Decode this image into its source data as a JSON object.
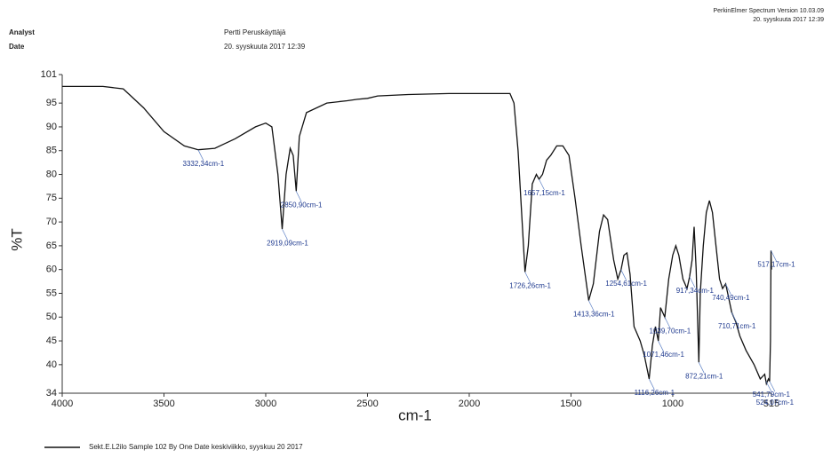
{
  "header": {
    "analyst_label": "Analyst",
    "analyst": "Pertti Peruskäyttäjä",
    "date_label": "Date",
    "date": "20. syyskuuta 2017 12:39",
    "software": "PerkinElmer Spectrum Version 10.03.09",
    "printed": "20. syyskuuta 2017 12:39"
  },
  "chart_data": {
    "type": "line",
    "xlabel": "cm-1",
    "ylabel": "%T",
    "xlim": [
      4000,
      515
    ],
    "ylim": [
      34,
      101
    ],
    "xticks": [
      4000,
      3500,
      3000,
      2500,
      2000,
      1500,
      1000,
      515
    ],
    "yticks": [
      34,
      40,
      45,
      50,
      55,
      60,
      65,
      70,
      75,
      80,
      85,
      90,
      95,
      101
    ],
    "series": [
      {
        "name": "Sekt.E.L2ilo    Sample 102 By One Date keskiviikko, syyskuu 20 2017",
        "color": "#111111",
        "x": [
          4000,
          3800,
          3700,
          3600,
          3500,
          3400,
          3332,
          3250,
          3150,
          3050,
          3000,
          2970,
          2940,
          2919,
          2900,
          2880,
          2865,
          2850,
          2835,
          2800,
          2700,
          2600,
          2550,
          2500,
          2450,
          2300,
          2100,
          1900,
          1800,
          1780,
          1760,
          1740,
          1726,
          1710,
          1690,
          1670,
          1657,
          1640,
          1620,
          1600,
          1570,
          1540,
          1510,
          1480,
          1450,
          1413,
          1390,
          1360,
          1340,
          1320,
          1290,
          1270,
          1254,
          1240,
          1225,
          1210,
          1190,
          1160,
          1140,
          1116,
          1100,
          1085,
          1071,
          1060,
          1039,
          1020,
          1000,
          985,
          970,
          950,
          930,
          917,
          905,
          895,
          885,
          872,
          865,
          850,
          835,
          820,
          805,
          790,
          770,
          755,
          740,
          725,
          710,
          690,
          670,
          640,
          600,
          570,
          548,
          540,
          530,
          524,
          520,
          517,
          515
        ],
        "values": [
          98.5,
          98.5,
          98,
          94,
          89,
          86,
          85.2,
          85.5,
          87.5,
          90,
          90.8,
          90,
          80,
          68.5,
          80,
          85.5,
          84,
          76.5,
          88,
          93,
          95,
          95.5,
          95.8,
          96,
          96.5,
          96.8,
          97,
          97,
          97,
          95,
          85,
          70,
          59.5,
          65,
          78,
          80,
          79,
          80,
          83,
          84,
          86,
          86,
          84,
          75,
          65,
          53.5,
          57,
          68,
          71.5,
          70.5,
          62,
          58,
          60,
          63,
          63.5,
          59,
          48,
          45,
          42,
          37,
          44,
          48,
          45,
          52,
          50,
          58,
          63,
          65,
          63,
          58,
          56,
          58.5,
          62,
          69,
          60,
          40.5,
          55,
          65,
          72,
          74.5,
          72,
          66,
          58,
          56,
          57,
          54,
          51,
          49,
          46,
          43,
          40,
          37,
          38,
          36,
          37,
          36.5,
          45,
          64,
          60
        ]
      }
    ],
    "annotations": [
      {
        "text": "3332,34cm-1",
        "x": 3332.34,
        "y": 85.2
      },
      {
        "text": "2919,09cm-1",
        "x": 2919.09,
        "y": 68.5
      },
      {
        "text": "2850,90cm-1",
        "x": 2850.9,
        "y": 76.5
      },
      {
        "text": "1726,26cm-1",
        "x": 1726.26,
        "y": 59.5
      },
      {
        "text": "1657,15cm-1",
        "x": 1657.15,
        "y": 79
      },
      {
        "text": "1413,36cm-1",
        "x": 1413.36,
        "y": 53.5
      },
      {
        "text": "1254,61cm-1",
        "x": 1254.61,
        "y": 60
      },
      {
        "text": "1116,26cm-1",
        "x": 1116.26,
        "y": 37
      },
      {
        "text": "1071,46cm-1",
        "x": 1071.46,
        "y": 45
      },
      {
        "text": "1039,70cm-1",
        "x": 1039.7,
        "y": 50
      },
      {
        "text": "917,34cm-1",
        "x": 917.34,
        "y": 58.5
      },
      {
        "text": "872,21cm-1",
        "x": 872.21,
        "y": 40.5
      },
      {
        "text": "740,49cm-1",
        "x": 740.49,
        "y": 57
      },
      {
        "text": "710,71cm-1",
        "x": 710.71,
        "y": 51
      },
      {
        "text": "541,79cm-1",
        "x": 541.79,
        "y": 36.5
      },
      {
        "text": "524,07cm-1",
        "x": 524.07,
        "y": 36.5
      },
      {
        "text": "517,17cm-1",
        "x": 517.17,
        "y": 64
      }
    ]
  }
}
